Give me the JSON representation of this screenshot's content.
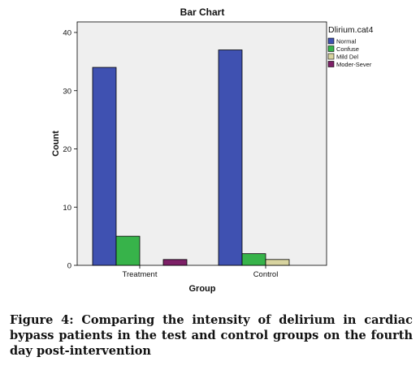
{
  "chart_data": {
    "type": "bar",
    "title": "Bar Chart",
    "xlabel": "Group",
    "ylabel": "Count",
    "categories": [
      "Treatment",
      "Control"
    ],
    "series": [
      {
        "name": "Normal",
        "color": "#3f51b1",
        "values": [
          34,
          37
        ]
      },
      {
        "name": "Confuse",
        "color": "#37b34a",
        "values": [
          5,
          2
        ]
      },
      {
        "name": "Mild Del",
        "color": "#d8d4a0",
        "values": [
          0,
          1
        ]
      },
      {
        "name": "Moder-Sever",
        "color": "#7d2067",
        "values": [
          1,
          0
        ]
      }
    ],
    "ylim": [
      0,
      40
    ],
    "yticks": [
      0,
      10,
      20,
      30,
      40
    ],
    "legend": {
      "title": "Dlirium.cat4",
      "placement": "right"
    },
    "grid": false,
    "plot_background": "#efefef"
  },
  "caption": "Figure 4: Comparing the intensity of delirium in cardiac bypass patients in the test and control groups on the fourth day post-intervention"
}
